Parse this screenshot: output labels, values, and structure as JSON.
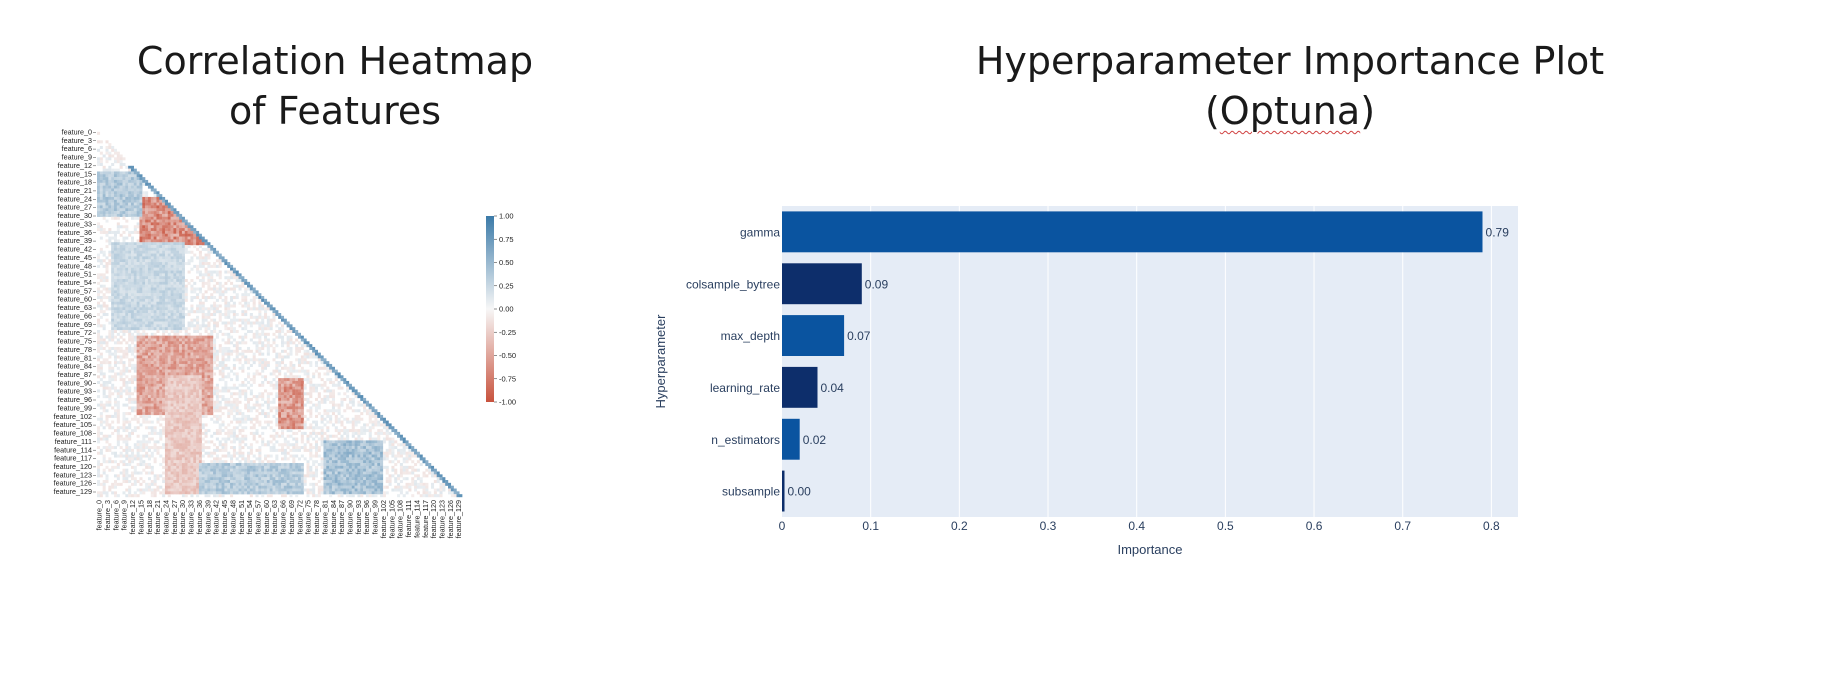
{
  "titles": {
    "left_line1": "Correlation Heatmap",
    "left_line2": "of Features",
    "right_line1": "Hyperparameter Importance Plot",
    "right_line2_prefix": "(",
    "right_line2_word": "Optuna",
    "right_line2_suffix": ")"
  },
  "colors": {
    "plot_bg": "#e5ecf6",
    "bar_dark": "#0d2e6b",
    "bar_mid": "#0a54a0",
    "heat_pos": "#3b7aa8",
    "heat_neg": "#c8523d"
  },
  "chart_data": [
    {
      "type": "heatmap",
      "title": "Correlation Heatmap of Features",
      "y_tick_labels": [
        "feature_0",
        "feature_3",
        "feature_6",
        "feature_9",
        "feature_12",
        "feature_15",
        "feature_18",
        "feature_21",
        "feature_24",
        "feature_27",
        "feature_30",
        "feature_33",
        "feature_36",
        "feature_39",
        "feature_42",
        "feature_45",
        "feature_48",
        "feature_51",
        "feature_54",
        "feature_57",
        "feature_60",
        "feature_63",
        "feature_66",
        "feature_69",
        "feature_72",
        "feature_75",
        "feature_78",
        "feature_81",
        "feature_84",
        "feature_87",
        "feature_90",
        "feature_93",
        "feature_96",
        "feature_99",
        "feature_102",
        "feature_105",
        "feature_108",
        "feature_111",
        "feature_114",
        "feature_117",
        "feature_120",
        "feature_123",
        "feature_126",
        "feature_129"
      ],
      "x_tick_labels": [
        "feature_0",
        "feature_3",
        "feature_6",
        "feature_9",
        "feature_12",
        "feature_15",
        "feature_18",
        "feature_21",
        "feature_24",
        "feature_27",
        "feature_30",
        "feature_33",
        "feature_36",
        "feature_39",
        "feature_42",
        "feature_45",
        "feature_48",
        "feature_51",
        "feature_54",
        "feature_57",
        "feature_60",
        "feature_63",
        "feature_66",
        "feature_69",
        "feature_72",
        "feature_75",
        "feature_78",
        "feature_81",
        "feature_84",
        "feature_87",
        "feature_90",
        "feature_93",
        "feature_96",
        "feature_99",
        "feature_102",
        "feature_105",
        "feature_108",
        "feature_111",
        "feature_114",
        "feature_117",
        "feature_120",
        "feature_123",
        "feature_126",
        "feature_129"
      ],
      "mask": "upper-triangle",
      "colorbar": {
        "range": [
          -1.0,
          1.0
        ],
        "ticks": [
          "1.00",
          "0.75",
          "0.50",
          "0.25",
          "0.00",
          "-0.25",
          "-0.50",
          "-0.75",
          "-1.00"
        ]
      }
    },
    {
      "type": "bar",
      "orientation": "horizontal",
      "title": "Hyperparameter Importance Plot (Optuna)",
      "categories": [
        "gamma",
        "colsample_bytree",
        "max_depth",
        "learning_rate",
        "n_estimators",
        "subsample"
      ],
      "values": [
        0.79,
        0.09,
        0.07,
        0.04,
        0.02,
        0.0
      ],
      "value_labels": [
        "0.79",
        "0.09",
        "0.07",
        "0.04",
        "0.02",
        "0.00"
      ],
      "bar_colors": [
        "#0a54a0",
        "#0d2e6b",
        "#0a54a0",
        "#0d2e6b",
        "#0a54a0",
        "#0d2e6b"
      ],
      "xlabel": "Importance",
      "ylabel": "Hyperparameter",
      "xlim": [
        0,
        0.83
      ],
      "x_ticks": [
        "0",
        "0.1",
        "0.2",
        "0.3",
        "0.4",
        "0.5",
        "0.6",
        "0.7",
        "0.8"
      ],
      "grid": true
    }
  ]
}
